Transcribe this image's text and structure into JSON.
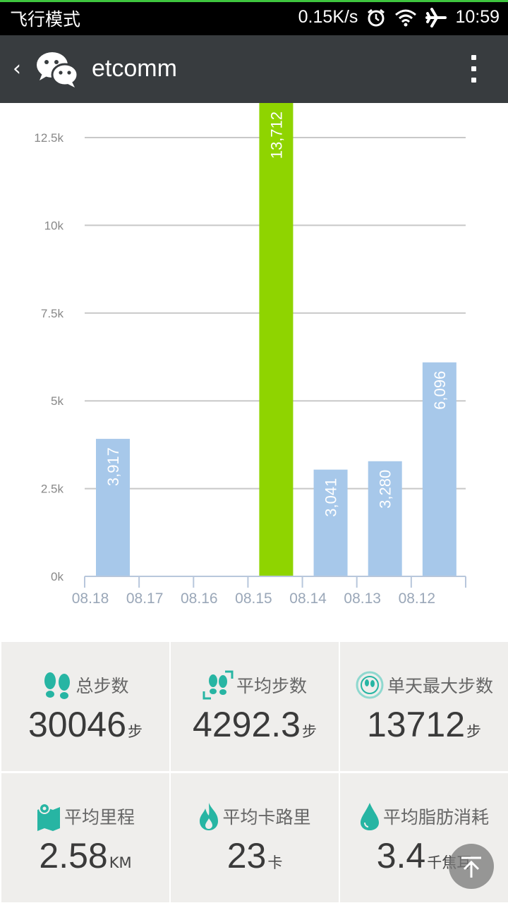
{
  "statusbar": {
    "carrier": "飞行模式",
    "speed": "0.15K/s",
    "time": "10:59"
  },
  "titlebar": {
    "title": "etcomm"
  },
  "chart_data": {
    "type": "bar",
    "categories": [
      "08.18",
      "08.17",
      "08.16",
      "08.15",
      "08.14",
      "08.13",
      "08.12"
    ],
    "values": [
      3917,
      0,
      0,
      13712,
      3041,
      3280,
      6096
    ],
    "value_labels": [
      "3,917",
      "",
      "",
      "13,712",
      "3,041",
      "3,280",
      "6,096"
    ],
    "highlight_index": 3,
    "yticks": [
      "0k",
      "2.5k",
      "5k",
      "7.5k",
      "10k",
      "12.5k"
    ],
    "ylim": [
      0,
      13000
    ],
    "colors": {
      "bar": "#a7c8ea",
      "highlight": "#8fd400",
      "grid": "#c8c8c8",
      "axis": "#b8c7dc"
    }
  },
  "stats": [
    {
      "label": "总步数",
      "value": "30046",
      "unit": "步",
      "icon": "footprints-icon"
    },
    {
      "label": "平均步数",
      "value": "4292.3",
      "unit": "步",
      "icon": "footprints-frame-icon"
    },
    {
      "label": "单天最大步数",
      "value": "13712",
      "unit": "步",
      "icon": "footprints-circle-icon"
    },
    {
      "label": "平均里程",
      "value": "2.58",
      "unit": "KM",
      "icon": "map-pin-icon"
    },
    {
      "label": "平均卡路里",
      "value": "23",
      "unit": "卡",
      "icon": "flame-icon"
    },
    {
      "label": "平均脂肪消耗",
      "value": "3.4",
      "unit": "千焦耳",
      "icon": "drop-icon"
    }
  ],
  "accent_color": "#27b5a3"
}
